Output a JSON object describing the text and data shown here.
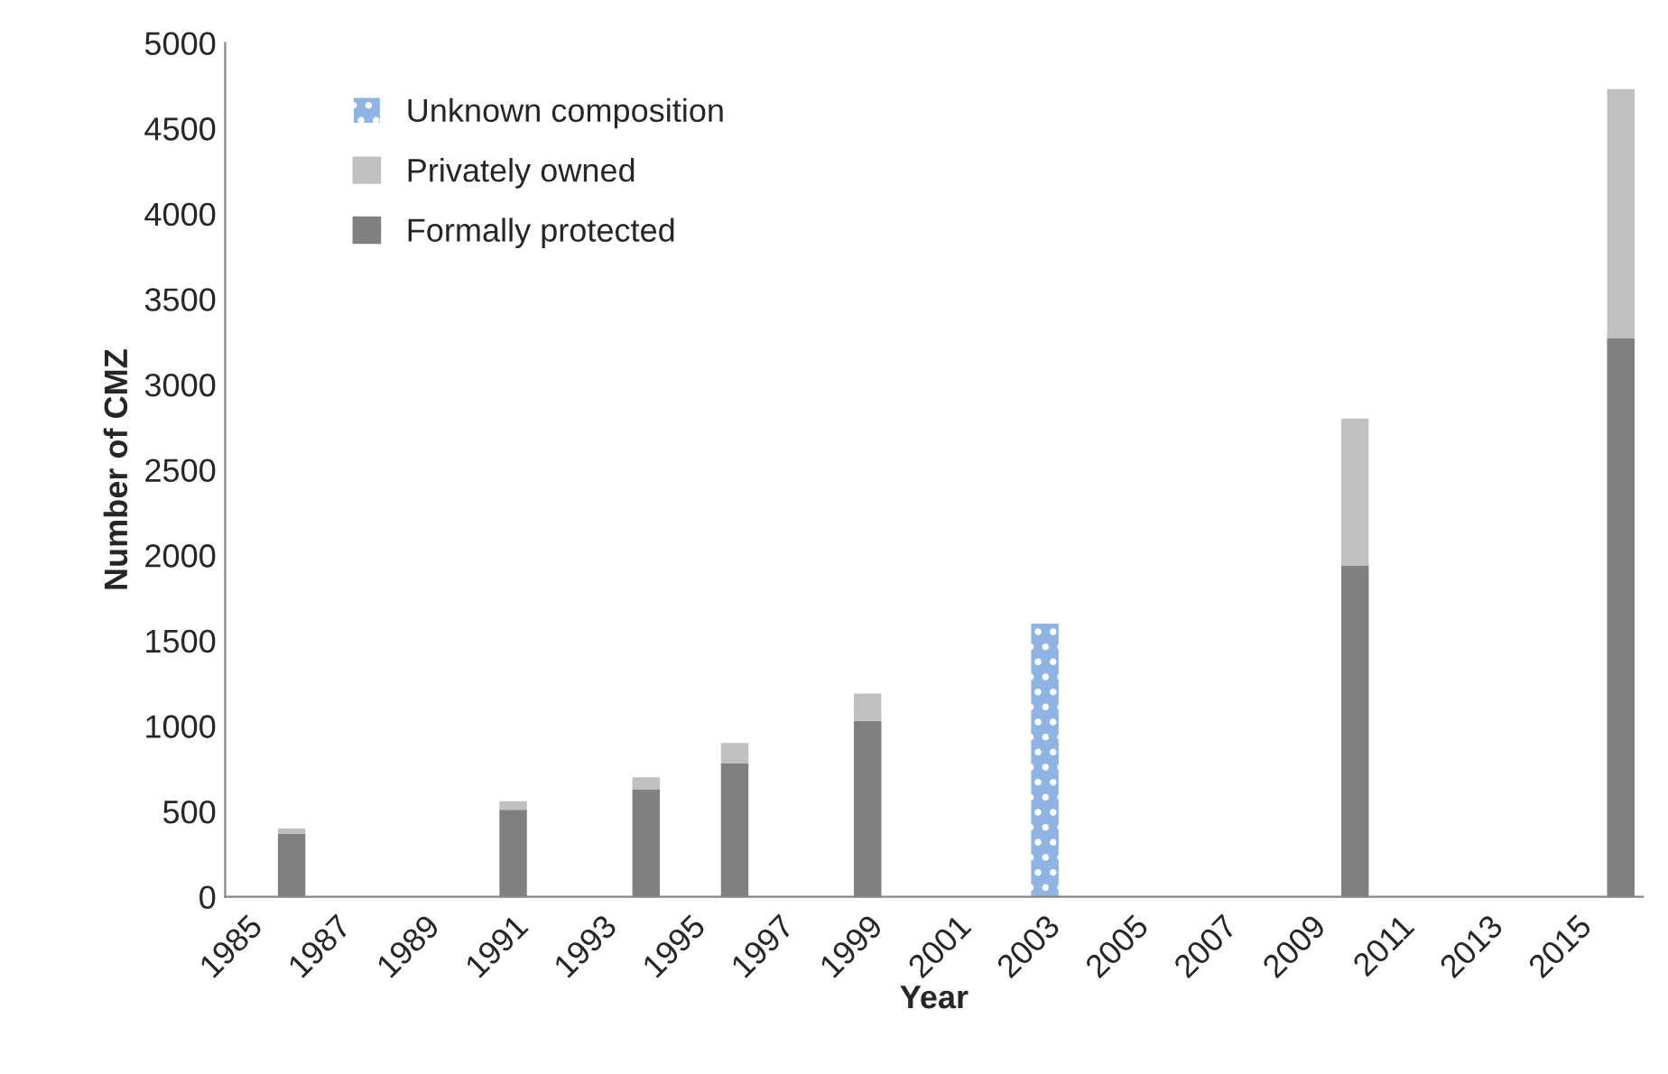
{
  "chart_data": {
    "type": "bar",
    "stacked": true,
    "xlabel": "Year",
    "ylabel": "Number of CMZ",
    "categories": [
      "1985",
      null,
      "1987",
      null,
      "1989",
      null,
      "1991",
      null,
      "1993",
      null,
      "1995",
      null,
      "1997",
      null,
      "1999",
      null,
      "2001",
      null,
      "2003",
      null,
      "2005",
      null,
      "2007",
      null,
      "2009",
      null,
      "2011",
      null,
      "2013",
      null,
      "2015",
      null
    ],
    "series": [
      {
        "name": "Formally protected",
        "color": "#808080",
        "values": [
          null,
          370,
          null,
          null,
          null,
          null,
          510,
          null,
          null,
          630,
          null,
          780,
          null,
          null,
          1030,
          null,
          null,
          null,
          null,
          null,
          null,
          null,
          null,
          null,
          null,
          1940,
          null,
          null,
          null,
          null,
          null,
          3270
        ]
      },
      {
        "name": "Privately owned",
        "color": "#c0c0c0",
        "values": [
          null,
          30,
          null,
          null,
          null,
          null,
          50,
          null,
          null,
          70,
          null,
          120,
          null,
          null,
          160,
          null,
          null,
          null,
          null,
          null,
          null,
          null,
          null,
          null,
          null,
          860,
          null,
          null,
          null,
          null,
          null,
          1460
        ]
      },
      {
        "name": "Unknown composition",
        "color": "#8eb4e3",
        "values": [
          null,
          null,
          null,
          null,
          null,
          null,
          null,
          null,
          null,
          null,
          null,
          null,
          null,
          null,
          null,
          null,
          null,
          null,
          1600,
          null,
          null,
          null,
          null,
          null,
          null,
          null,
          null,
          null,
          null,
          null,
          null,
          null
        ]
      }
    ],
    "ylim": [
      0,
      5000
    ],
    "yticks": [
      0,
      500,
      1000,
      1500,
      2000,
      2500,
      3000,
      3500,
      4000,
      4500,
      5000
    ],
    "legend": "top left",
    "grid": false
  }
}
